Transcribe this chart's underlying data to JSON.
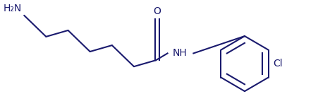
{
  "bg_color": "#ffffff",
  "line_color": "#1a1a6e",
  "line_width": 1.5,
  "font_size": 10,
  "font_color": "#1a1a6e",
  "font_family": "DejaVu Sans",
  "figsize": [
    4.52,
    1.5
  ],
  "dpi": 100,
  "nh2_label": "H₂N",
  "o_label": "O",
  "nh_label": "NH",
  "cl_label": "Cl"
}
